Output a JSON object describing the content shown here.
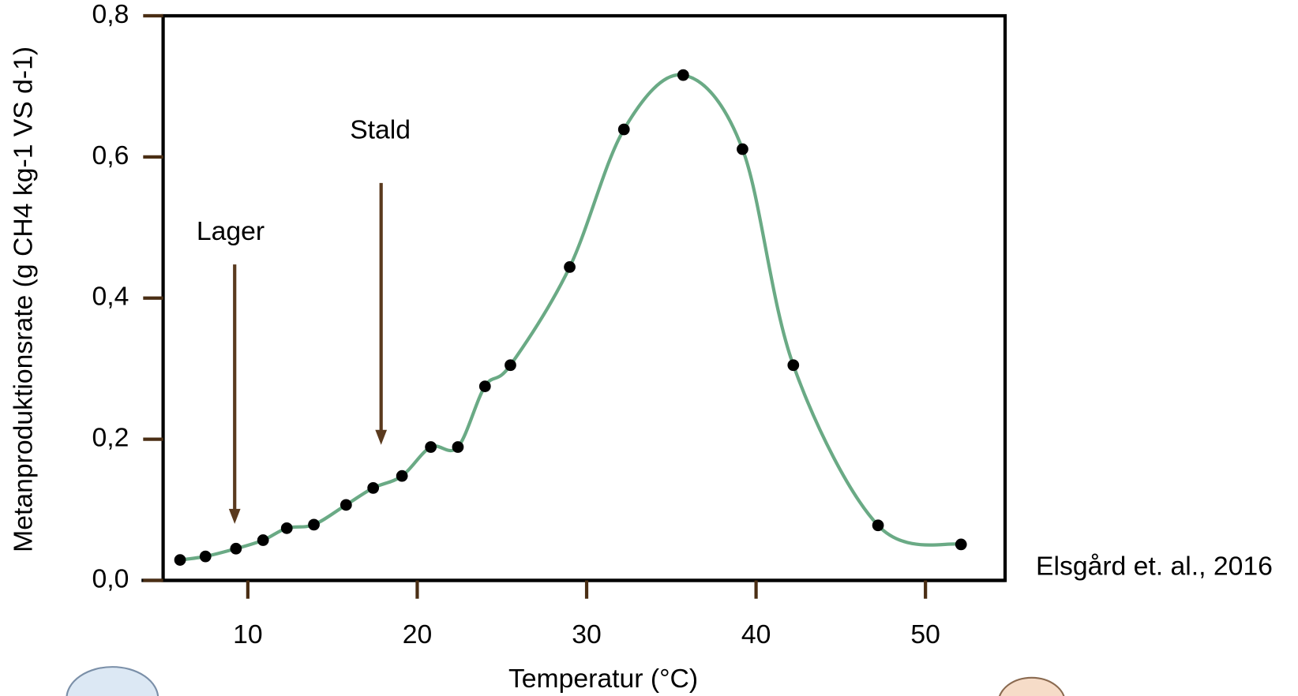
{
  "chart_data": {
    "type": "line",
    "x_label": "Temperatur (°C)",
    "y_label": "Metanproduktionsrate (g CH4 kg-1 VS d-1)",
    "annotations": [
      "Lager",
      "Stald"
    ],
    "source": "Elsgård et. al., 2016",
    "x": [
      6.0,
      7.5,
      9.3,
      10.9,
      12.3,
      13.9,
      15.8,
      17.4,
      19.1,
      20.8,
      22.4,
      24.0,
      25.5,
      29.0,
      32.2,
      35.7,
      39.2,
      42.2,
      47.2,
      52.1
    ],
    "series": [
      {
        "color": "#6aaa85",
        "marker_color": "#000000",
        "values": [
          0.029,
          0.034,
          0.045,
          0.057,
          0.074,
          0.079,
          0.107,
          0.131,
          0.148,
          0.189,
          0.189,
          0.275,
          0.305,
          0.444,
          0.639,
          0.716,
          0.611,
          0.305,
          0.078,
          0.051
        ]
      }
    ],
    "xlim": [
      5,
      54.7
    ],
    "xticks": [
      10,
      20,
      30,
      40,
      50
    ],
    "ylim": [
      0,
      0.8
    ],
    "yticks": [
      {
        "value": 0,
        "label": "0,0"
      },
      {
        "value": 0.2,
        "label": "0,2"
      },
      {
        "value": 0.4,
        "label": "0,4"
      },
      {
        "value": 0.6,
        "label": "0,6"
      },
      {
        "value": 0.8,
        "label": "0,8"
      }
    ]
  }
}
